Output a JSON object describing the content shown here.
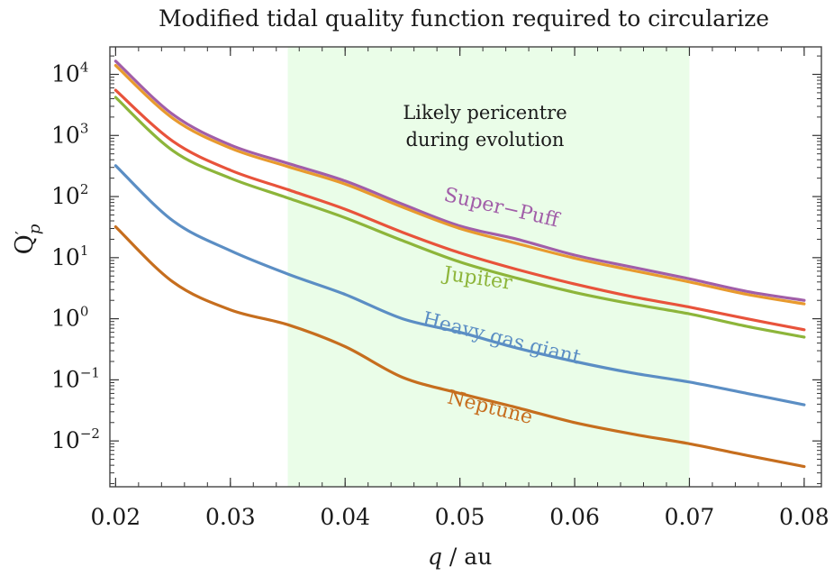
{
  "chart_data": {
    "type": "line",
    "title": "Modified tidal quality function required to circularize",
    "xlabel": {
      "var": "q",
      "unit": "/ au"
    },
    "ylabel": {
      "base": "Q",
      "prime": "′",
      "sub": "p"
    },
    "xlim": [
      0.0195,
      0.0815
    ],
    "ylim_log10": [
      -2.75,
      4.45
    ],
    "yscale": "log",
    "x_ticks": [
      {
        "value": 0.02,
        "label": "0.02"
      },
      {
        "value": 0.03,
        "label": "0.03"
      },
      {
        "value": 0.04,
        "label": "0.04"
      },
      {
        "value": 0.05,
        "label": "0.05"
      },
      {
        "value": 0.06,
        "label": "0.06"
      },
      {
        "value": 0.07,
        "label": "0.07"
      },
      {
        "value": 0.08,
        "label": "0.08"
      }
    ],
    "y_ticks": [
      {
        "exp": 4,
        "base": "10",
        "sup": "4"
      },
      {
        "exp": 3,
        "base": "10",
        "sup": "3"
      },
      {
        "exp": 2,
        "base": "10",
        "sup": "2"
      },
      {
        "exp": 1,
        "base": "10",
        "sup": "1"
      },
      {
        "exp": 0,
        "base": "10",
        "sup": "0"
      },
      {
        "exp": -1,
        "base": "10",
        "sup": "−1"
      },
      {
        "exp": -2,
        "base": "10",
        "sup": "−2"
      }
    ],
    "shaded_region": {
      "x": [
        0.035,
        0.07
      ],
      "color": "#eafde8",
      "label_lines": [
        "Likely pericentre",
        "during evolution"
      ]
    },
    "series": [
      {
        "name": "Super−Puff",
        "color": "#a15ea8",
        "label_color": "#a15ea8",
        "label_at": {
          "x": 0.0535,
          "log10": 1.72
        },
        "label_rotate": 13,
        "points": [
          [
            0.02,
            16500
          ],
          [
            0.025,
            2200
          ],
          [
            0.03,
            700
          ],
          [
            0.035,
            350
          ],
          [
            0.04,
            180
          ],
          [
            0.045,
            75
          ],
          [
            0.05,
            33
          ],
          [
            0.055,
            20
          ],
          [
            0.06,
            11
          ],
          [
            0.065,
            7
          ],
          [
            0.07,
            4.5
          ],
          [
            0.075,
            2.8
          ],
          [
            0.08,
            2.0
          ]
        ]
      },
      {
        "name": "",
        "color": "#e89a2e",
        "label_color": "#e89a2e",
        "points": [
          [
            0.02,
            14000
          ],
          [
            0.025,
            1900
          ],
          [
            0.03,
            620
          ],
          [
            0.035,
            310
          ],
          [
            0.04,
            160
          ],
          [
            0.045,
            67
          ],
          [
            0.05,
            30
          ],
          [
            0.055,
            17
          ],
          [
            0.06,
            9.8
          ],
          [
            0.065,
            6.2
          ],
          [
            0.07,
            4.0
          ],
          [
            0.075,
            2.5
          ],
          [
            0.08,
            1.75
          ]
        ]
      },
      {
        "name": "",
        "color": "#e8533b",
        "label_color": "#e8533b",
        "points": [
          [
            0.02,
            5500
          ],
          [
            0.025,
            800
          ],
          [
            0.03,
            270
          ],
          [
            0.035,
            130
          ],
          [
            0.04,
            62
          ],
          [
            0.045,
            26
          ],
          [
            0.05,
            12
          ],
          [
            0.055,
            6.4
          ],
          [
            0.06,
            3.7
          ],
          [
            0.065,
            2.3
          ],
          [
            0.07,
            1.55
          ],
          [
            0.075,
            1.0
          ],
          [
            0.08,
            0.66
          ]
        ]
      },
      {
        "name": "Jupiter",
        "color": "#8db53a",
        "label_color": "#8db53a",
        "label_at": {
          "x": 0.0515,
          "log10": 0.56
        },
        "label_rotate": 8,
        "points": [
          [
            0.02,
            4200
          ],
          [
            0.025,
            560
          ],
          [
            0.03,
            200
          ],
          [
            0.035,
            95
          ],
          [
            0.04,
            45
          ],
          [
            0.045,
            19
          ],
          [
            0.05,
            8.5
          ],
          [
            0.055,
            4.6
          ],
          [
            0.06,
            2.7
          ],
          [
            0.065,
            1.75
          ],
          [
            0.07,
            1.2
          ],
          [
            0.075,
            0.75
          ],
          [
            0.08,
            0.5
          ]
        ]
      },
      {
        "name": "Heavy gas giant",
        "color": "#5b8ec4",
        "label_color": "#5b8ec4",
        "label_at": {
          "x": 0.0535,
          "log10": -0.42
        },
        "label_rotate": 14,
        "points": [
          [
            0.02,
            320
          ],
          [
            0.025,
            40
          ],
          [
            0.03,
            13
          ],
          [
            0.035,
            5.4
          ],
          [
            0.04,
            2.5
          ],
          [
            0.045,
            1.0
          ],
          [
            0.05,
            0.6
          ],
          [
            0.055,
            0.33
          ],
          [
            0.06,
            0.2
          ],
          [
            0.065,
            0.13
          ],
          [
            0.07,
            0.092
          ],
          [
            0.075,
            0.06
          ],
          [
            0.08,
            0.039
          ]
        ]
      },
      {
        "name": "Neptune",
        "color": "#c66e1e",
        "label_color": "#c66e1e",
        "label_at": {
          "x": 0.0525,
          "log10": -1.55
        },
        "label_rotate": 14,
        "points": [
          [
            0.02,
            32
          ],
          [
            0.025,
            4.0
          ],
          [
            0.03,
            1.4
          ],
          [
            0.035,
            0.8
          ],
          [
            0.04,
            0.35
          ],
          [
            0.045,
            0.11
          ],
          [
            0.05,
            0.06
          ],
          [
            0.055,
            0.035
          ],
          [
            0.06,
            0.02
          ],
          [
            0.065,
            0.013
          ],
          [
            0.07,
            0.009
          ],
          [
            0.075,
            0.0058
          ],
          [
            0.08,
            0.0038
          ]
        ]
      }
    ]
  }
}
